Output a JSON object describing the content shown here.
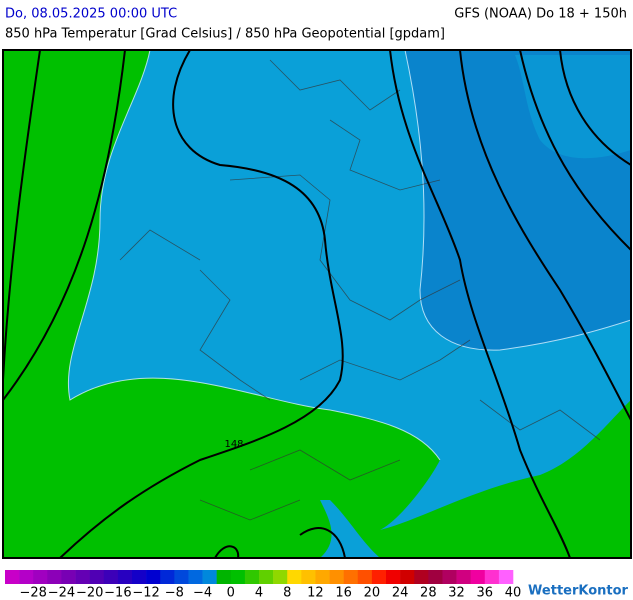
{
  "header": {
    "left": "Do, 08.05.2025 00:00 UTC",
    "right": "GFS (NOAA) Do 18 + 150h",
    "subtitle": "850 hPa Temperatur [Grad Celsius] / 850 hPa Geopotential [gpdam]"
  },
  "map": {
    "contour_label": "148"
  },
  "legend": {
    "labels": [
      "−28",
      "−24",
      "−20",
      "−16",
      "−12",
      "−8",
      "−4",
      "0",
      "4",
      "8",
      "12",
      "16",
      "20",
      "24",
      "28",
      "32",
      "36",
      "40"
    ]
  },
  "brand": "WetterKontor"
}
